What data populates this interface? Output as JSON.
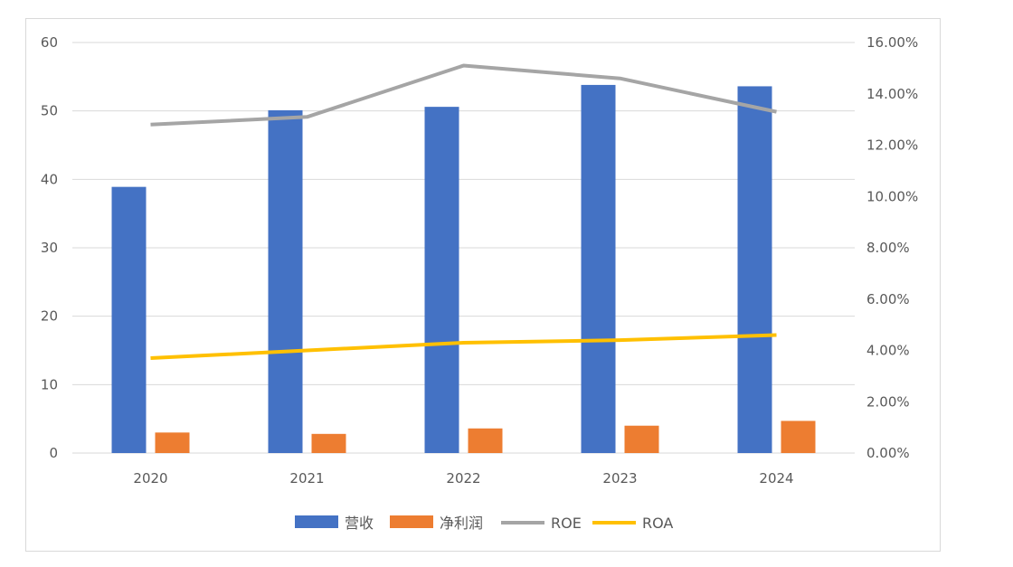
{
  "chart_data": {
    "type": "bar",
    "categories": [
      "2020",
      "2021",
      "2022",
      "2023",
      "2024"
    ],
    "series": [
      {
        "name": "营收",
        "kind": "bar",
        "axis": "left",
        "color": "#4472C4",
        "values": [
          38.9,
          50.1,
          50.6,
          53.8,
          53.6
        ]
      },
      {
        "name": "净利润",
        "kind": "bar",
        "axis": "left",
        "color": "#ED7D31",
        "values": [
          3.0,
          2.8,
          3.6,
          4.0,
          4.7
        ]
      },
      {
        "name": "ROE",
        "kind": "line",
        "axis": "right",
        "color": "#A5A5A5",
        "values": [
          0.128,
          0.131,
          0.151,
          0.146,
          0.133
        ]
      },
      {
        "name": "ROA",
        "kind": "line",
        "axis": "right",
        "color": "#FFC000",
        "values": [
          0.037,
          0.04,
          0.043,
          0.044,
          0.046
        ]
      }
    ],
    "left_axis": {
      "ylim": [
        0,
        60
      ],
      "ticks": [
        "0",
        "10",
        "20",
        "30",
        "40",
        "50",
        "60"
      ]
    },
    "right_axis": {
      "ylim": [
        0,
        0.16
      ],
      "ticks": [
        "0.00%",
        "2.00%",
        "4.00%",
        "6.00%",
        "8.00%",
        "10.00%",
        "12.00%",
        "14.00%",
        "16.00%"
      ]
    },
    "grid": true,
    "legend": "bottom"
  }
}
